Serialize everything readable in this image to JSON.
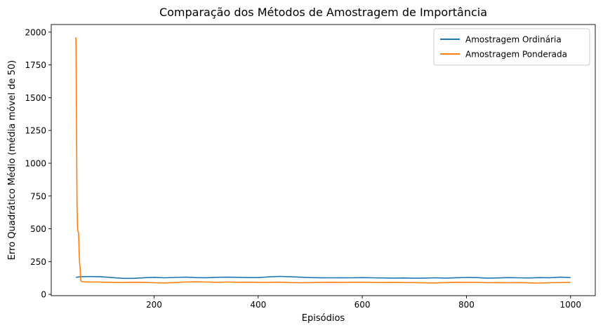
{
  "chart_data": {
    "type": "line",
    "title": "Comparação dos Métodos de Amostragem de Importância",
    "xlabel": "Episódios",
    "ylabel": "Erro Quadrático Médio (média móvel de 50)",
    "xlim": [
      2.5,
      1047.5
    ],
    "ylim": [
      -10,
      2058
    ],
    "xticks": [
      200,
      400,
      600,
      800,
      1000
    ],
    "yticks": [
      0,
      250,
      500,
      750,
      1000,
      1250,
      1500,
      1750,
      2000
    ],
    "grid": false,
    "legend": {
      "position": "top-right"
    },
    "series": [
      {
        "name": "Amostragem Ordinária",
        "color": "#1f77b4",
        "x": [
          50,
          60,
          80,
          100,
          120,
          140,
          160,
          180,
          200,
          220,
          240,
          260,
          280,
          300,
          320,
          340,
          360,
          380,
          400,
          420,
          440,
          460,
          480,
          500,
          520,
          540,
          560,
          580,
          600,
          620,
          640,
          660,
          680,
          700,
          720,
          740,
          760,
          780,
          800,
          820,
          840,
          860,
          880,
          900,
          920,
          940,
          960,
          980,
          1000
        ],
        "y": [
          130,
          135,
          136,
          134,
          128,
          122,
          122,
          127,
          130,
          126,
          129,
          131,
          128,
          127,
          130,
          131,
          130,
          128,
          128,
          133,
          137,
          135,
          131,
          128,
          127,
          126,
          127,
          126,
          128,
          126,
          125,
          124,
          125,
          123,
          124,
          126,
          124,
          127,
          129,
          128,
          124,
          125,
          128,
          126,
          125,
          128,
          127,
          131,
          128
        ]
      },
      {
        "name": "Amostragem Ponderada",
        "color": "#ff7f0e",
        "x": [
          50,
          51,
          52,
          53,
          54,
          55,
          56,
          57,
          58,
          59,
          60,
          62,
          65,
          70,
          80,
          90,
          100,
          120,
          140,
          160,
          180,
          200,
          220,
          240,
          260,
          280,
          300,
          320,
          340,
          360,
          380,
          400,
          420,
          440,
          460,
          480,
          500,
          520,
          540,
          560,
          580,
          600,
          620,
          640,
          660,
          680,
          700,
          720,
          740,
          760,
          780,
          800,
          820,
          840,
          860,
          880,
          900,
          920,
          940,
          960,
          980,
          1000
        ],
        "y": [
          1960,
          1300,
          700,
          500,
          480,
          470,
          330,
          240,
          200,
          110,
          100,
          97,
          96,
          95,
          94,
          95,
          93,
          91,
          90,
          92,
          91,
          89,
          87,
          90,
          94,
          96,
          94,
          92,
          94,
          92,
          93,
          91,
          91,
          93,
          90,
          89,
          90,
          91,
          92,
          91,
          92,
          92,
          91,
          90,
          91,
          90,
          90,
          88,
          87,
          90,
          92,
          91,
          91,
          89,
          90,
          89,
          90,
          88,
          86,
          89,
          90,
          91
        ]
      }
    ]
  }
}
